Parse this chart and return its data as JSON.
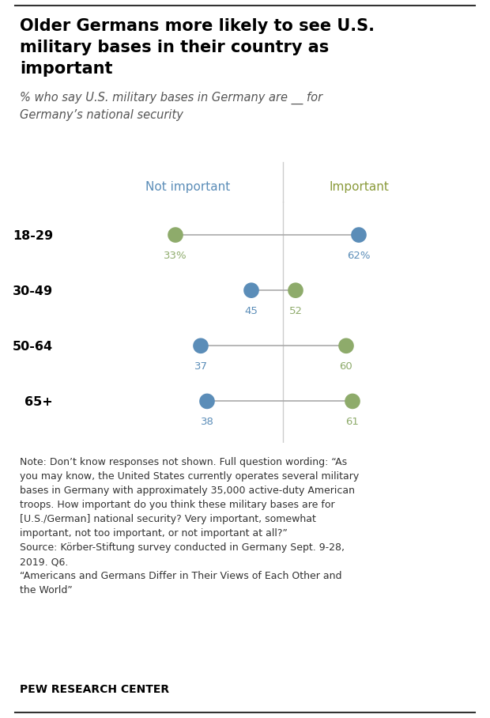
{
  "title_line1": "Older Germans more likely to see U.S.",
  "title_line2": "military bases in their country as",
  "title_line3": "important",
  "subtitle": "% who say U.S. military bases in Germany are __ for\nGermany’s national security",
  "age_groups": [
    "18-29",
    "30-49",
    "50-64",
    "65+"
  ],
  "not_important": [
    62,
    45,
    37,
    38
  ],
  "important": [
    33,
    52,
    60,
    61
  ],
  "not_important_label": "Not important",
  "important_label": "Important",
  "blue_color": "#5b8db8",
  "green_color": "#8eab6b",
  "green_header_color": "#8a9a3a",
  "line_color": "#aaaaaa",
  "divider_x": 50,
  "xlim": [
    15,
    80
  ],
  "ylim_lo": -0.75,
  "ylim_hi": 3.6,
  "note_text": "Note: Don’t know responses not shown. Full question wording: “As\nyou may know, the United States currently operates several military\nbases in Germany with approximately 35,000 active-duty American\ntroops. How important do you think these military bases are for\n[U.S./German] national security? Very important, somewhat\nimportant, not too important, or not important at all?”\nSource: Körber-Stiftung survey conducted in Germany Sept. 9-28,\n2019. Q6.\n“Americans and Germans Differ in Their Views of Each Other and\nthe World”",
  "source_bold": "PEW RESEARCH CENTER",
  "dot_size": 200,
  "background_color": "#ffffff",
  "border_color": "#cccccc",
  "fig_width": 6.2,
  "fig_height": 9.08
}
